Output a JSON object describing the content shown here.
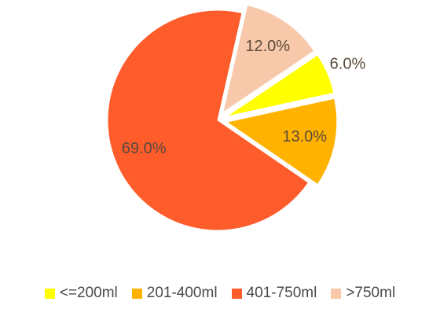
{
  "chart_data": {
    "type": "pie",
    "categories": [
      "<=200ml",
      "201-400ml",
      "401-750ml",
      ">750ml"
    ],
    "values": [
      6.0,
      13.0,
      69.0,
      12.0
    ],
    "labels": [
      "6.0%",
      "13.0%",
      "69.0%",
      "12.0%"
    ],
    "colors": [
      "#ffff00",
      "#ffb300",
      "#fe5c2b",
      "#f8c8aa"
    ],
    "exploded": [
      true,
      true,
      false,
      true
    ],
    "legend": {
      "position": "bottom",
      "items": [
        {
          "label": "<=200ml",
          "color": "#ffff00"
        },
        {
          "label": "201-400ml",
          "color": "#ffb300"
        },
        {
          "label": "401-750ml",
          "color": "#fe5c2b"
        },
        {
          "label": ">750ml",
          "color": "#f8c8aa"
        }
      ]
    }
  }
}
